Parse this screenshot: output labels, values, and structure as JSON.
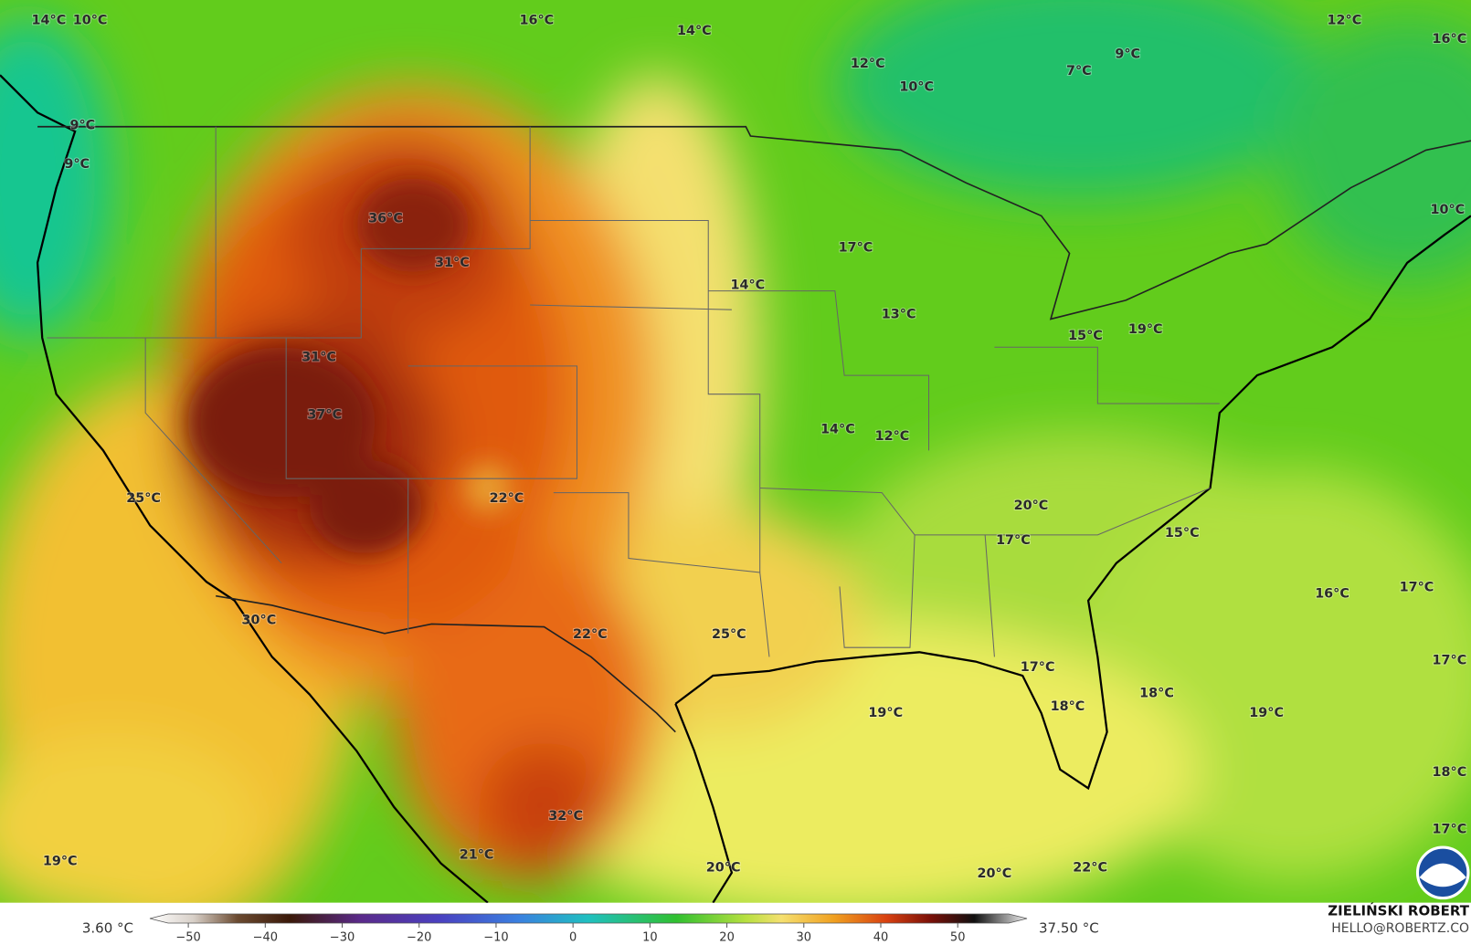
{
  "map": {
    "labels": [
      "14°C",
      "10°C",
      "16°C",
      "14°C",
      "12°C",
      "10°C",
      "7°C",
      "9°C",
      "12°C",
      "16°C",
      "9°C",
      "9°C",
      "36°C",
      "31°C",
      "17°C",
      "10°C",
      "14°C",
      "13°C",
      "15°C",
      "19°C",
      "31°C",
      "37°C",
      "14°C",
      "12°C",
      "25°C",
      "22°C",
      "20°C",
      "17°C",
      "15°C",
      "16°C",
      "17°C",
      "30°C",
      "22°C",
      "25°C",
      "17°C",
      "17°C",
      "18°C",
      "18°C",
      "19°C",
      "19°C",
      "18°C",
      "32°C",
      "17°C",
      "19°C",
      "21°C",
      "20°C",
      "20°C",
      "22°C"
    ],
    "colorbar": {
      "lim": [
        -55,
        59
      ],
      "ticks": [
        {
          "value": -50,
          "label": "−50"
        },
        {
          "value": -40,
          "label": "−40"
        },
        {
          "value": -30,
          "label": "−30"
        },
        {
          "value": -20,
          "label": "−20"
        },
        {
          "value": -10,
          "label": "−10"
        },
        0,
        10,
        20,
        30,
        40,
        50
      ],
      "min_label": "3.60 °C",
      "max_label": "37.50 °C"
    },
    "credit": "ZIELIŃSKI ROBERT",
    "email": "HELLO@ROBERTZ.CO"
  }
}
